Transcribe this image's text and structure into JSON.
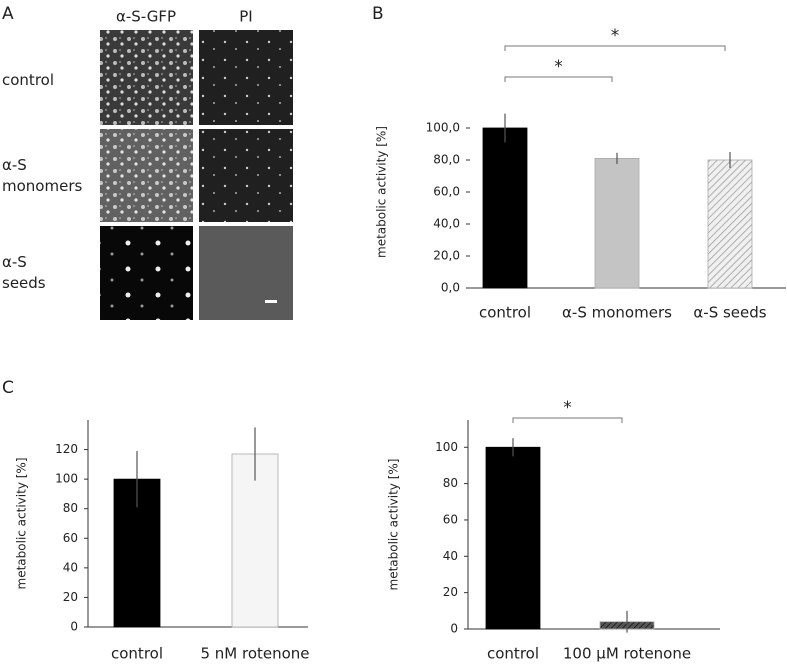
{
  "panel_labels": [
    "A",
    "B",
    "C"
  ],
  "panel_a": {
    "columns": [
      "α-S-GFP",
      "PI"
    ],
    "rows": [
      "control",
      "α-S\nmonomers",
      "α-S\nseeds"
    ]
  },
  "chart_data": [
    {
      "type": "bar",
      "y_label": "metabolic activity [%]",
      "categories": [
        "control",
        "α-S monomers",
        "α-S seeds"
      ],
      "values": [
        100,
        81,
        80
      ],
      "errors": [
        9,
        3.5,
        5
      ],
      "colors": [
        "#000000",
        "#c4c4c4",
        "#d8d8d8"
      ],
      "hatched": [
        false,
        false,
        true
      ],
      "ylim": [
        0,
        120
      ],
      "yticks": [
        {
          "value": 0,
          "label": "0,0"
        },
        {
          "value": 20,
          "label": "20,0"
        },
        {
          "value": 40,
          "label": "40,0"
        },
        {
          "value": 60,
          "label": "60,0"
        },
        {
          "value": 80,
          "label": "80,0"
        },
        {
          "value": 100,
          "label": "100,0"
        }
      ],
      "significance": [
        {
          "from": 0,
          "to": 1,
          "label": "*"
        },
        {
          "from": 0,
          "to": 2,
          "label": "*"
        }
      ]
    },
    {
      "type": "bar",
      "y_label": "metabolic activity [%]",
      "categories": [
        "control",
        "5 nM rotenone"
      ],
      "values": [
        100,
        117
      ],
      "errors": [
        19,
        18
      ],
      "colors": [
        "#000000",
        "#f5f5f5"
      ],
      "hatched": [
        false,
        false
      ],
      "ylim": [
        0,
        140
      ],
      "yticks": [
        0,
        20,
        40,
        60,
        80,
        100,
        120
      ],
      "significance": []
    },
    {
      "type": "bar",
      "y_label": "metabolic activity [%]",
      "categories": [
        "control",
        "100 µM rotenone"
      ],
      "values": [
        100,
        4
      ],
      "errors": [
        5,
        6
      ],
      "colors": [
        "#000000",
        "#404040"
      ],
      "hatched": [
        false,
        true
      ],
      "ylim": [
        0,
        115
      ],
      "yticks": [
        0,
        20,
        40,
        60,
        80,
        100
      ],
      "significance": [
        {
          "from": 0,
          "to": 1,
          "label": "*"
        }
      ]
    }
  ]
}
